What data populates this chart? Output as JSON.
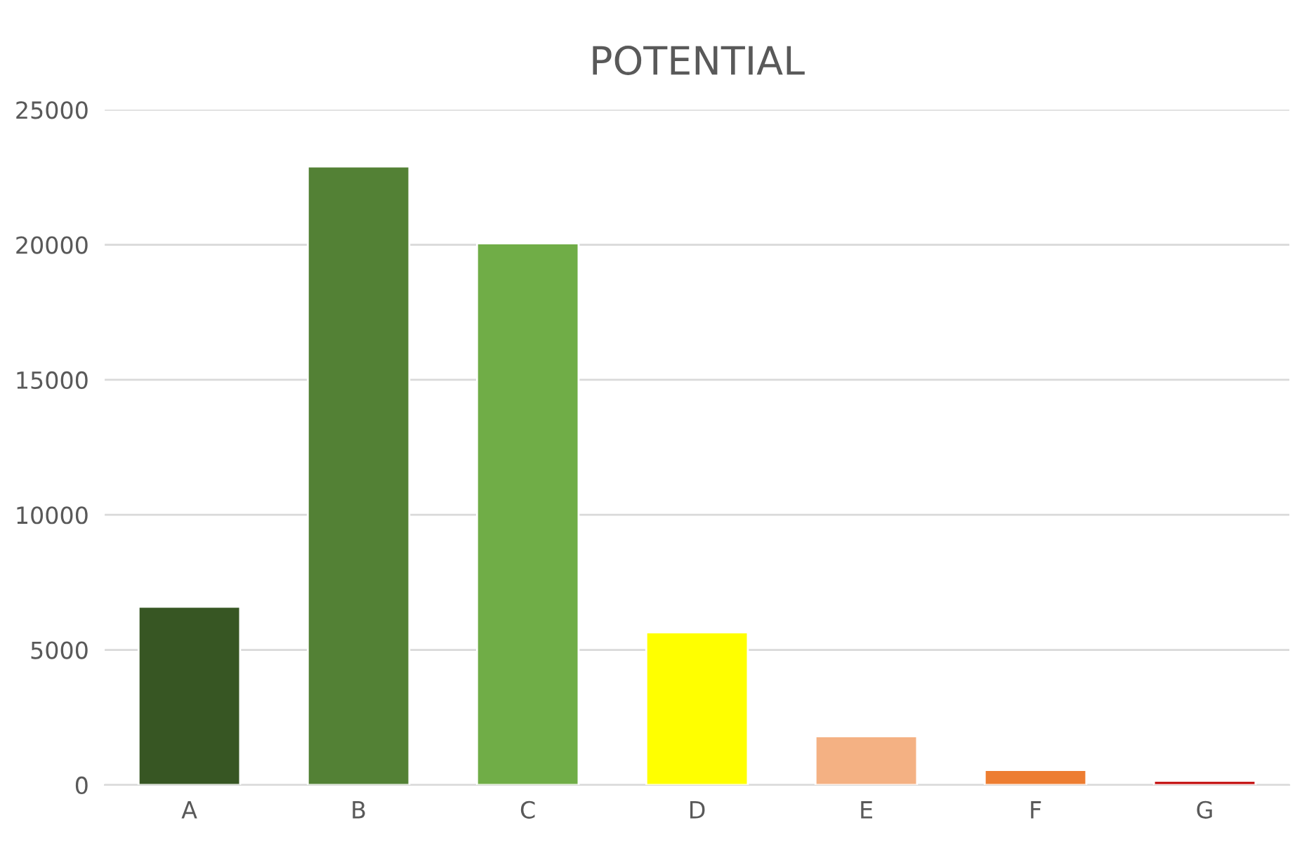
{
  "chart_data": {
    "type": "bar",
    "title": "POTENTIAL",
    "categories": [
      "A",
      "B",
      "C",
      "D",
      "E",
      "F",
      "G"
    ],
    "values": [
      6600,
      22900,
      20050,
      5650,
      1800,
      550,
      150
    ],
    "colors": [
      "#375623",
      "#538135",
      "#70ad47",
      "#ffff00",
      "#f4b183",
      "#ed7d31",
      "#c00000"
    ],
    "ylim": [
      0,
      25000
    ],
    "yticks": [
      0,
      5000,
      10000,
      15000,
      20000,
      25000
    ],
    "grid": "y",
    "legend": false
  }
}
